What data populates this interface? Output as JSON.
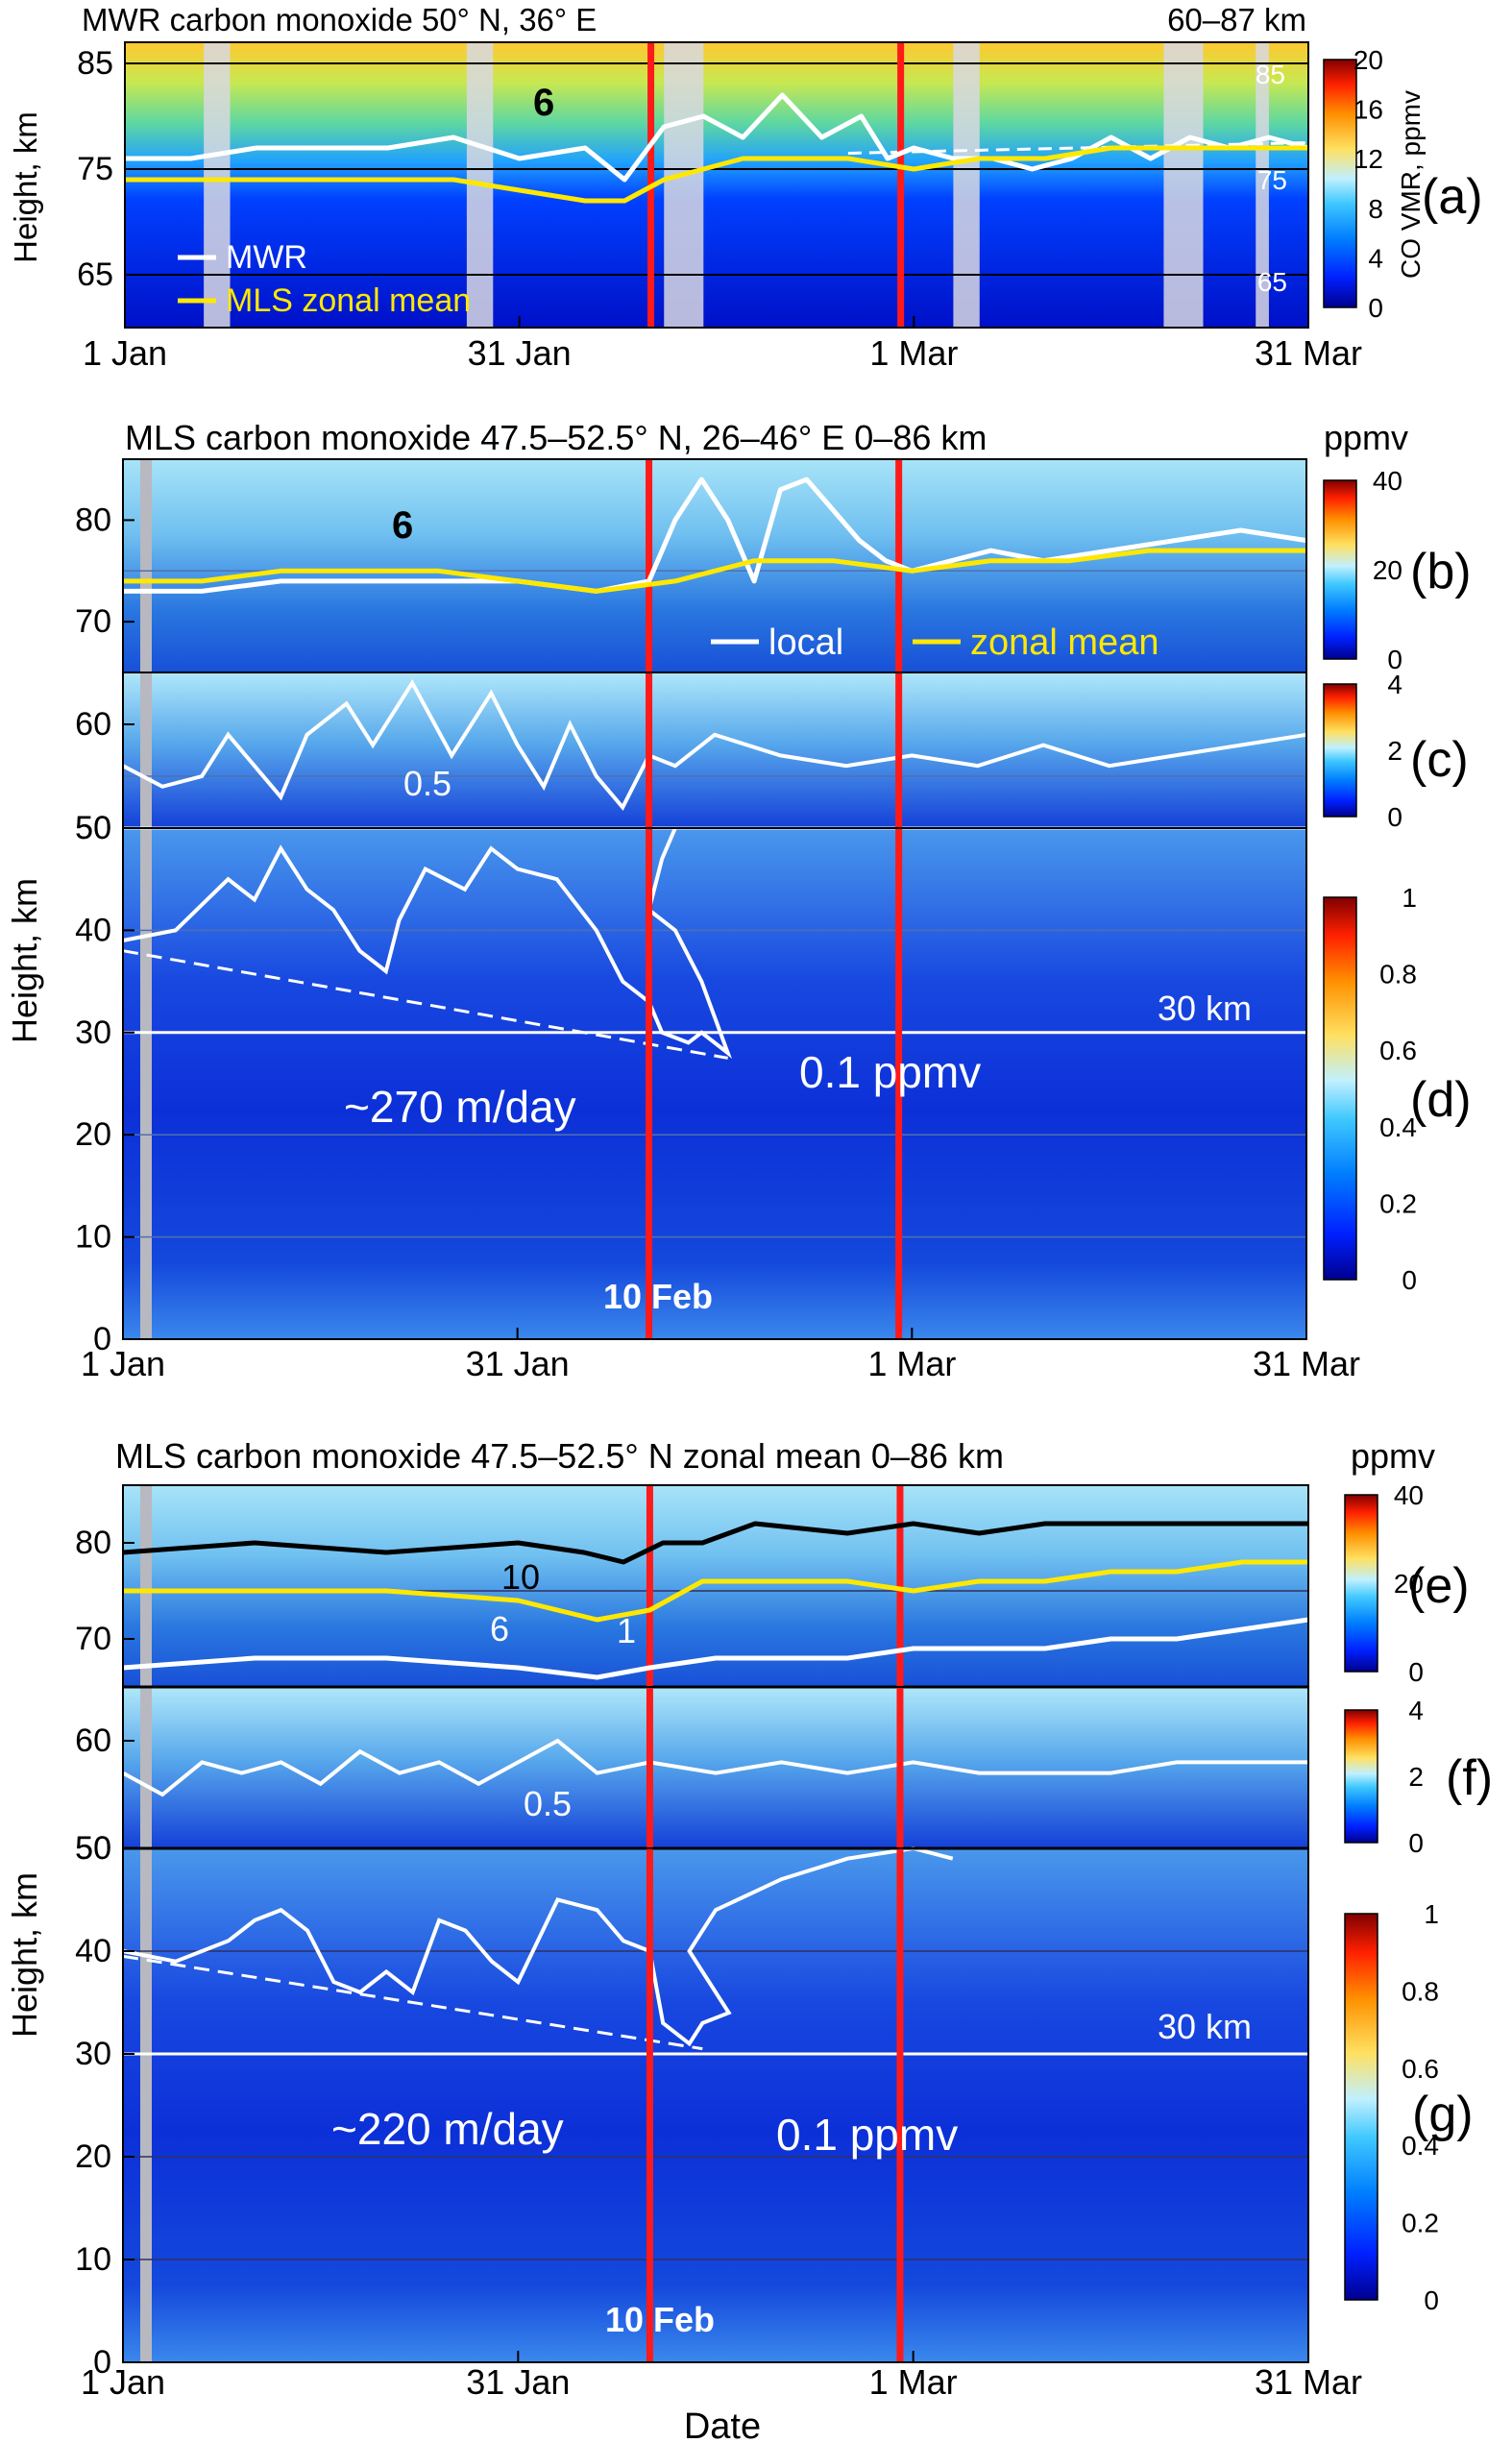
{
  "colors": {
    "marker": "#ff1a1a",
    "yellow_line": "#ffe800",
    "white_line": "#ffffff",
    "black_line": "#000000",
    "colormap": [
      "#00008f",
      "#0020ff",
      "#0080ff",
      "#40c8ff",
      "#c0f0ff",
      "#ffe060",
      "#ff9000",
      "#ff2000",
      "#800000"
    ]
  },
  "labels": {
    "a": "(a)",
    "b": "(b)",
    "c": "(c)",
    "d": "(d)",
    "e": "(e)",
    "f": "(f)",
    "g": "(g)",
    "ylabel": "Height, km",
    "xlabel": "Date",
    "km30": "30 km",
    "feb10": "10 Feb",
    "xticks": [
      "1 Jan",
      "31 Jan",
      "1 Mar",
      "31 Mar"
    ]
  },
  "chart_data": [
    {
      "panel": "a",
      "type": "heatmap",
      "title": "MWR carbon monoxide 50° N, 36° E",
      "title_right": "60–87 km",
      "ylabel": "Height, km",
      "ylim": [
        60,
        87
      ],
      "yticks": [
        65,
        75,
        85
      ],
      "x_dates": [
        "1 Jan",
        "31 Jan",
        "1 Mar",
        "31 Mar"
      ],
      "colorbar": {
        "label": "CO VMR, ppmv",
        "ticks": [
          0,
          4,
          8,
          12,
          16,
          20
        ],
        "range": [
          0,
          20
        ]
      },
      "hlines": [
        65,
        75,
        85
      ],
      "hline_labels": [
        "65",
        "75",
        "85"
      ],
      "vlines_red": [
        "10 Feb",
        "1 Mar"
      ],
      "contour_label": "6",
      "series": [
        {
          "name": "MWR",
          "color": "white",
          "x": [
            0,
            5,
            10,
            15,
            20,
            25,
            30,
            35,
            38,
            41,
            44,
            47,
            50,
            53,
            56,
            58,
            60,
            63,
            66,
            69,
            72,
            75,
            78,
            81,
            84,
            87,
            90
          ],
          "y": [
            76,
            76,
            77,
            77,
            77,
            78,
            76,
            77,
            74,
            79,
            80,
            78,
            82,
            78,
            80,
            76,
            77,
            76,
            76,
            75,
            76,
            78,
            76,
            78,
            77,
            78,
            77
          ]
        },
        {
          "name": "MLS zonal mean",
          "color": "yellow",
          "x": [
            0,
            5,
            10,
            15,
            20,
            25,
            30,
            35,
            38,
            41,
            44,
            47,
            50,
            55,
            60,
            65,
            70,
            75,
            80,
            85,
            90
          ],
          "y": [
            74,
            74,
            74,
            74,
            74,
            74,
            73,
            72,
            72,
            74,
            75,
            76,
            76,
            76,
            75,
            76,
            76,
            77,
            77,
            77,
            77
          ]
        }
      ],
      "legend": [
        "MWR",
        "MLS zonal mean"
      ]
    },
    {
      "panel": "b",
      "type": "heatmap",
      "title": "MLS carbon monoxide 47.5–52.5° N, 26–46° E 0–86 km",
      "title_right": "ppmv",
      "ylim": [
        65,
        86
      ],
      "yticks": [
        70,
        80
      ],
      "colorbar": {
        "ticks": [
          0,
          20,
          40
        ],
        "range": [
          0,
          40
        ]
      },
      "contour_label": "6",
      "series": [
        {
          "name": "local",
          "color": "white",
          "x": [
            0,
            6,
            12,
            18,
            24,
            30,
            36,
            40,
            42,
            44,
            46,
            48,
            50,
            52,
            54,
            56,
            58,
            60,
            63,
            66,
            70,
            75,
            80,
            85,
            90
          ],
          "y": [
            73,
            73,
            74,
            74,
            74,
            74,
            73,
            74,
            80,
            84,
            80,
            74,
            83,
            84,
            81,
            78,
            76,
            75,
            76,
            77,
            76,
            77,
            78,
            79,
            78
          ]
        },
        {
          "name": "zonal mean",
          "color": "yellow",
          "x": [
            0,
            6,
            12,
            18,
            24,
            30,
            36,
            42,
            48,
            54,
            60,
            66,
            72,
            78,
            84,
            90
          ],
          "y": [
            74,
            74,
            75,
            75,
            75,
            74,
            73,
            74,
            76,
            76,
            75,
            76,
            76,
            77,
            77,
            77
          ]
        }
      ],
      "legend": [
        "local",
        "zonal mean"
      ]
    },
    {
      "panel": "c",
      "type": "heatmap",
      "ylim": [
        50,
        65
      ],
      "yticks": [
        50,
        60
      ],
      "colorbar": {
        "ticks": [
          0,
          2,
          4
        ],
        "range": [
          0,
          4
        ]
      },
      "contour_label": "0.5"
    },
    {
      "panel": "d",
      "type": "heatmap",
      "ylim": [
        0,
        50
      ],
      "yticks": [
        0,
        10,
        20,
        30,
        40,
        50
      ],
      "x_dates": [
        "1 Jan",
        "31 Jan",
        "1 Mar",
        "31 Mar"
      ],
      "colorbar": {
        "ticks": [
          0.0,
          0.2,
          0.4,
          0.6,
          0.8,
          1.0
        ],
        "range": [
          0,
          1
        ]
      },
      "contour_label": "0.1 ppmv",
      "descent_label": "~270 m/day",
      "descent_line": {
        "x": [
          0,
          46
        ],
        "y": [
          38,
          27.5
        ]
      }
    },
    {
      "panel": "e",
      "type": "heatmap",
      "title": "MLS carbon monoxide 47.5–52.5° N zonal mean 0–86 km",
      "title_right": "ppmv",
      "ylim": [
        65,
        86
      ],
      "yticks": [
        70,
        80
      ],
      "colorbar": {
        "ticks": [
          0,
          20,
          40
        ],
        "range": [
          0,
          40
        ]
      },
      "contour_labels": [
        "10",
        "6",
        "1"
      ],
      "series": [
        {
          "name": "10 ppmv",
          "color": "black",
          "x": [
            0,
            10,
            20,
            30,
            35,
            38,
            41,
            44,
            48,
            55,
            60,
            65,
            70,
            75,
            80,
            85,
            90
          ],
          "y": [
            79,
            80,
            79,
            80,
            79,
            78,
            80,
            80,
            82,
            81,
            82,
            81,
            82,
            82,
            82,
            82,
            82
          ]
        },
        {
          "name": "6 ppmv",
          "color": "yellow",
          "x": [
            0,
            10,
            20,
            30,
            36,
            40,
            44,
            48,
            55,
            60,
            65,
            70,
            75,
            80,
            85,
            90
          ],
          "y": [
            75,
            75,
            75,
            74,
            72,
            73,
            76,
            76,
            76,
            75,
            76,
            76,
            77,
            77,
            78,
            78
          ]
        },
        {
          "name": "1 ppmv",
          "color": "white",
          "x": [
            0,
            10,
            20,
            30,
            36,
            40,
            45,
            50,
            55,
            60,
            65,
            70,
            75,
            80,
            85,
            90
          ],
          "y": [
            67,
            68,
            68,
            67,
            66,
            67,
            68,
            68,
            68,
            69,
            69,
            69,
            70,
            70,
            71,
            72
          ]
        }
      ]
    },
    {
      "panel": "f",
      "type": "heatmap",
      "ylim": [
        50,
        65
      ],
      "yticks": [
        50,
        60
      ],
      "colorbar": {
        "ticks": [
          0,
          2,
          4
        ],
        "range": [
          0,
          4
        ]
      },
      "contour_label": "0.5"
    },
    {
      "panel": "g",
      "type": "heatmap",
      "ylim": [
        0,
        50
      ],
      "yticks": [
        0,
        10,
        20,
        30,
        40,
        50
      ],
      "x_dates": [
        "1 Jan",
        "31 Jan",
        "1 Mar",
        "31 Mar"
      ],
      "xlabel": "Date",
      "colorbar": {
        "ticks": [
          0.0,
          0.2,
          0.4,
          0.6,
          0.8,
          1.0
        ],
        "range": [
          0,
          1
        ]
      },
      "contour_label": "0.1 ppmv",
      "descent_label": "~220 m/day",
      "descent_line": {
        "x": [
          0,
          44
        ],
        "y": [
          39.5,
          30.5
        ]
      }
    }
  ]
}
